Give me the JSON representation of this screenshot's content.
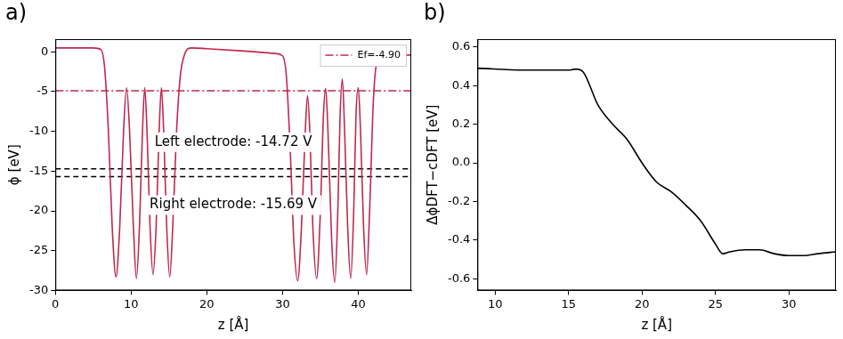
{
  "chart_data": [
    {
      "type": "line",
      "panel_label": "a)",
      "x_label": "z [Å]",
      "y_label": "ϕ [eV]",
      "xlim": [
        0,
        47
      ],
      "xticks": [
        0,
        10,
        20,
        30,
        40
      ],
      "ylim": [
        -30,
        1.6
      ],
      "yticks": [
        -30,
        -25,
        -20,
        -15,
        -10,
        -5,
        0
      ],
      "grid": false,
      "legend": "upper right",
      "series": [
        {
          "name": "ϕ",
          "color": "#c0284f",
          "line_style": "solid",
          "marker": "none",
          "x": [
            0,
            5,
            6,
            6.5,
            7,
            7.5,
            8,
            8.5,
            9,
            9.4,
            9.8,
            10.3,
            10.7,
            11.1,
            11.5,
            11.8,
            12.1,
            12.5,
            12.9,
            13.3,
            13.7,
            14.0,
            14.3,
            14.7,
            15.1,
            15.5,
            16,
            16.5,
            17,
            17.5,
            18,
            20,
            25,
            29,
            30,
            30.5,
            31,
            31.5,
            32,
            32.5,
            33,
            33.3,
            33.6,
            34,
            34.5,
            35,
            35.4,
            35.7,
            36,
            36.5,
            36.9,
            37.3,
            37.6,
            37.9,
            38.2,
            38.6,
            39,
            39.4,
            39.7,
            40,
            40.3,
            40.7,
            41.1,
            41.5,
            42,
            42.5,
            43,
            47
          ],
          "values": [
            0.5,
            0.5,
            0.3,
            -2,
            -10,
            -22,
            -28.3,
            -22,
            -10,
            -4.5,
            -10,
            -22,
            -28.5,
            -22,
            -10,
            -4.5,
            -10,
            -22,
            -28,
            -22,
            -10,
            -4.5,
            -10,
            -22,
            -28.3,
            -22,
            -10,
            -3,
            -0.5,
            0.4,
            0.5,
            0.4,
            0.1,
            -0.2,
            -0.5,
            -3,
            -12,
            -24,
            -28.8,
            -22,
            -10,
            -5.5,
            -10,
            -22,
            -28.5,
            -20,
            -8,
            -4.6,
            -10,
            -24,
            -29,
            -20,
            -8,
            -3.4,
            -10,
            -22,
            -28.5,
            -20,
            -8,
            -4.5,
            -10,
            -22,
            -28,
            -20,
            -6,
            -1,
            -0.4,
            -0.4
          ]
        }
      ],
      "hlines": [
        {
          "value": -4.9,
          "name": "Ef=-4.90",
          "color": "#c0284f",
          "line_style": "dashdot"
        },
        {
          "value": -14.72,
          "text": "Left electrode: -14.72 V",
          "color": "#000000",
          "line_style": "dashed"
        },
        {
          "value": -15.69,
          "text": "Right electrode: -15.69 V",
          "color": "#000000",
          "line_style": "dashed"
        }
      ]
    },
    {
      "type": "line",
      "panel_label": "b)",
      "x_label": "z [Å]",
      "y_label": "ΔϕDFT−cDFT [eV]",
      "xlim": [
        8.8,
        33.2
      ],
      "xticks": [
        10,
        15,
        20,
        25,
        30
      ],
      "ylim": [
        -0.66,
        0.64
      ],
      "yticks": [
        -0.6,
        -0.4,
        -0.2,
        {
          "value": 0,
          "label": "0.0"
        },
        0.2,
        0.4,
        0.6
      ],
      "grid": false,
      "series": [
        {
          "name": "Δϕ",
          "color": "#000000",
          "line_style": "solid",
          "marker": "none",
          "x": [
            8.8,
            12,
            15,
            15.5,
            16,
            17,
            18,
            19,
            20,
            21,
            22,
            23,
            24,
            25,
            25.5,
            26,
            27,
            28,
            29,
            30,
            31,
            32,
            33.2
          ],
          "values": [
            0.49,
            0.48,
            0.48,
            0.485,
            0.47,
            0.3,
            0.2,
            0.12,
            0.0,
            -0.1,
            -0.15,
            -0.22,
            -0.3,
            -0.42,
            -0.47,
            -0.46,
            -0.45,
            -0.45,
            -0.47,
            -0.48,
            -0.48,
            -0.47,
            -0.46
          ]
        }
      ]
    }
  ]
}
